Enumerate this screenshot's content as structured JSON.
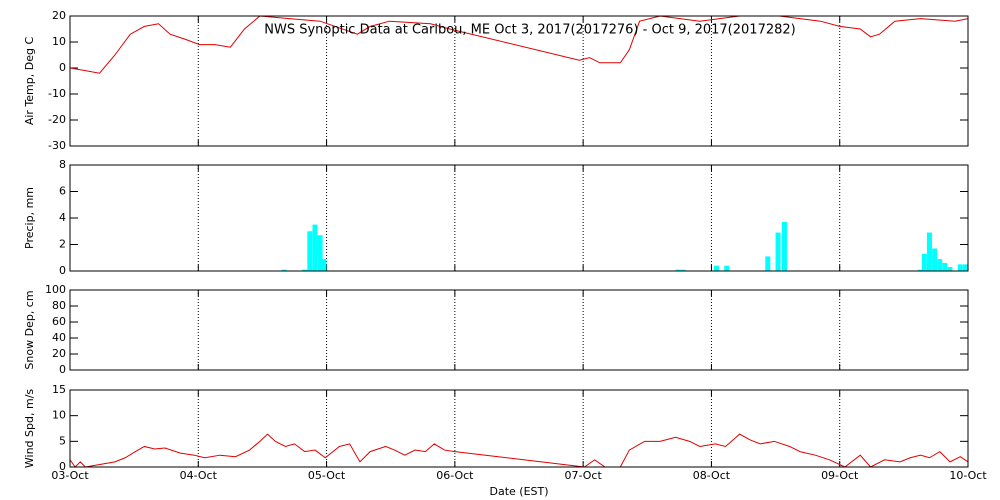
{
  "chart_data": [
    {
      "type": "line",
      "title": "NWS Synoptic Data at Caribou, ME   Oct  3, 2017(2017276) - Oct  9, 2017(2017282)",
      "ylabel": "Air Temp, Deg C",
      "ylim": [
        -30,
        20
      ],
      "yticks": [
        -30,
        -20,
        -10,
        0,
        10,
        20
      ],
      "series": [
        {
          "name": "Air Temp",
          "color": "#e00000",
          "x": [
            0,
            0.12,
            0.23,
            0.35,
            0.47,
            0.58,
            0.69,
            0.78,
            0.9,
            1.01,
            1.13,
            1.25,
            1.36,
            1.48,
            1.71,
            1.95,
            2.24,
            2.34,
            2.49,
            2.81,
            2.96,
            3.97,
            4.05,
            4.13,
            4.29,
            4.36,
            4.44,
            4.6,
            4.91,
            5.22,
            5.53,
            5.85,
            6.0,
            6.16,
            6.24,
            6.31,
            6.43,
            6.63,
            6.9,
            7.0
          ],
          "values": [
            0,
            -1,
            -2,
            5,
            13,
            16,
            17,
            13,
            11,
            9,
            9,
            8,
            15,
            20,
            19,
            18,
            13,
            16,
            18,
            17,
            15,
            3,
            4,
            2,
            2,
            7,
            18,
            20,
            18,
            20,
            20,
            18,
            16,
            15,
            12,
            13,
            18,
            19,
            18,
            19
          ]
        }
      ]
    },
    {
      "type": "bar",
      "ylabel": "Precip, mm",
      "ylim": [
        0,
        8
      ],
      "yticks": [
        0,
        2,
        4,
        6,
        8
      ],
      "series": [
        {
          "name": "Precip",
          "color": "#00ffff",
          "x": [
            1.65,
            1.81,
            1.85,
            1.89,
            1.93,
            1.96,
            4.72,
            4.76,
            5.02,
            5.1,
            5.42,
            5.5,
            5.55,
            6.61,
            6.64,
            6.68,
            6.72,
            6.76,
            6.8,
            6.84,
            6.92,
            6.96
          ],
          "values": [
            0.1,
            0.1,
            3.0,
            3.5,
            2.7,
            0.9,
            0.1,
            0.1,
            0.4,
            0.4,
            1.1,
            2.9,
            3.7,
            0.1,
            1.3,
            2.9,
            1.7,
            0.9,
            0.6,
            0.3,
            0.5,
            0.5
          ]
        }
      ]
    },
    {
      "type": "line",
      "ylabel": "Snow Dep, cm",
      "ylim": [
        0,
        100
      ],
      "yticks": [
        0,
        20,
        40,
        60,
        80,
        100
      ],
      "series": []
    },
    {
      "type": "line",
      "ylabel": "Wind Spd, m/s",
      "ylim": [
        0,
        15
      ],
      "yticks": [
        0,
        5,
        10,
        15
      ],
      "xlabel": "Date (EST)",
      "xlim": [
        0,
        7
      ],
      "xticks": [
        {
          "value": 0,
          "label": "03-Oct"
        },
        {
          "value": 1,
          "label": "04-Oct"
        },
        {
          "value": 2,
          "label": "05-Oct"
        },
        {
          "value": 3,
          "label": "06-Oct"
        },
        {
          "value": 4,
          "label": "07-Oct"
        },
        {
          "value": 5,
          "label": "08-Oct"
        },
        {
          "value": 6,
          "label": "09-Oct"
        },
        {
          "value": 7,
          "label": "10-Oct"
        }
      ],
      "series": [
        {
          "name": "Wind Spd",
          "color": "#e00000",
          "x": [
            0,
            0.04,
            0.08,
            0.12,
            0.35,
            0.43,
            0.51,
            0.58,
            0.66,
            0.74,
            0.86,
            0.97,
            1.05,
            1.17,
            1.29,
            1.4,
            1.48,
            1.54,
            1.6,
            1.68,
            1.75,
            1.83,
            1.91,
            1.99,
            2.1,
            2.18,
            2.26,
            2.34,
            2.46,
            2.53,
            2.61,
            2.69,
            2.77,
            2.84,
            2.92,
            3.0,
            4.01,
            4.09,
            4.17,
            4.29,
            4.36,
            4.48,
            4.6,
            4.72,
            4.83,
            4.91,
            5.03,
            5.11,
            5.22,
            5.3,
            5.38,
            5.49,
            5.61,
            5.69,
            5.81,
            5.92,
            6.04,
            6.16,
            6.24,
            6.35,
            6.47,
            6.55,
            6.63,
            6.7,
            6.78,
            6.86,
            6.94,
            7.0
          ],
          "values": [
            1.4,
            0,
            1,
            0,
            1,
            1.8,
            3,
            4,
            3.5,
            3.7,
            2.7,
            2.3,
            1.8,
            2.3,
            2,
            3.3,
            5,
            6.4,
            5,
            4,
            4.5,
            3,
            3.3,
            1.8,
            4,
            4.5,
            1,
            3,
            4,
            3.3,
            2.3,
            3.3,
            3,
            4.5,
            3.3,
            3,
            0,
            1.4,
            0,
            0,
            3.3,
            5,
            5,
            5.8,
            5,
            4,
            4.5,
            4,
            6.4,
            5.3,
            4.5,
            5,
            4,
            3,
            2.3,
            1.4,
            0,
            2.3,
            0,
            1.4,
            1,
            1.8,
            2.3,
            1.8,
            3,
            1,
            2,
            1
          ]
        }
      ]
    }
  ]
}
